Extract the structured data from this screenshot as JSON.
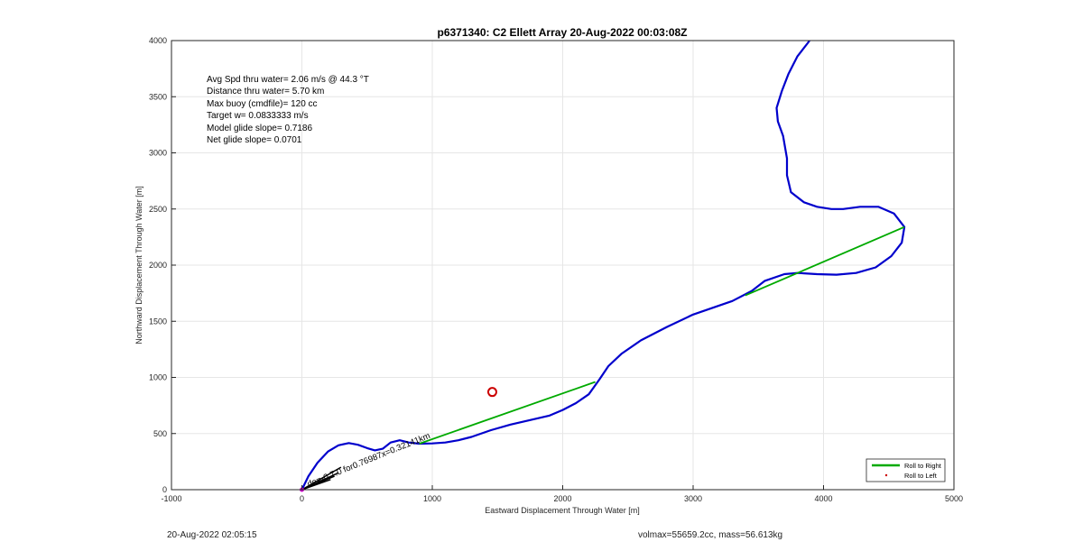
{
  "chart_data": {
    "type": "line",
    "title": "p6371340: C2 Ellett Array 20-Aug-2022 00:03:08Z",
    "xlabel": "Eastward Displacement Through Water [m]",
    "ylabel": "Northward Displacement Through Water [m]",
    "xlim": [
      -1000,
      5000
    ],
    "ylim": [
      0,
      4000
    ],
    "xticks": [
      -1000,
      0,
      1000,
      2000,
      3000,
      4000,
      5000
    ],
    "yticks": [
      0,
      500,
      1000,
      1500,
      2000,
      2500,
      3000,
      3500,
      4000
    ],
    "grid": true,
    "legend_position": "bottom-right",
    "legend": [
      {
        "label": "Roll to Right",
        "color": "#00aa00",
        "marker": "line"
      },
      {
        "label": "Roll to Left",
        "color": "#cc0000",
        "marker": "dot"
      }
    ],
    "stats_lines": [
      "Avg Spd thru water=  2.06 m/s @  44.3 °T",
      "Distance thru water=  5.70 km",
      "Max buoy (cmdfile)= 120 cc",
      "Target w= 0.0833333 m/s",
      "Model glide slope= 0.7186",
      "Net glide slope= 0.0701"
    ],
    "annotation_text": "de=-0.7.0 for0.76987x=0.32141km",
    "series": [
      {
        "color": "#0000cc",
        "points": [
          [
            0,
            0
          ],
          [
            50,
            120
          ],
          [
            120,
            240
          ],
          [
            200,
            340
          ],
          [
            280,
            395
          ],
          [
            360,
            415
          ],
          [
            430,
            400
          ],
          [
            500,
            370
          ],
          [
            560,
            350
          ],
          [
            620,
            365
          ],
          [
            680,
            420
          ],
          [
            750,
            440
          ],
          [
            820,
            420
          ],
          [
            900,
            410
          ],
          [
            1000,
            412
          ],
          [
            1100,
            420
          ],
          [
            1200,
            440
          ],
          [
            1300,
            470
          ],
          [
            1450,
            530
          ],
          [
            1600,
            580
          ],
          [
            1750,
            620
          ],
          [
            1900,
            660
          ],
          [
            2000,
            710
          ],
          [
            2100,
            770
          ],
          [
            2200,
            850
          ],
          [
            2280,
            980
          ],
          [
            2350,
            1100
          ],
          [
            2450,
            1210
          ],
          [
            2600,
            1330
          ],
          [
            2800,
            1450
          ],
          [
            3000,
            1560
          ],
          [
            3150,
            1620
          ],
          [
            3300,
            1680
          ],
          [
            3450,
            1770
          ],
          [
            3550,
            1860
          ],
          [
            3700,
            1920
          ],
          [
            3800,
            1930
          ],
          [
            3950,
            1920
          ],
          [
            4100,
            1915
          ],
          [
            4250,
            1930
          ],
          [
            4400,
            1980
          ],
          [
            4520,
            2080
          ],
          [
            4600,
            2200
          ],
          [
            4620,
            2340
          ],
          [
            4540,
            2460
          ],
          [
            4420,
            2520
          ],
          [
            4280,
            2520
          ],
          [
            4150,
            2500
          ],
          [
            4060,
            2500
          ],
          [
            3950,
            2520
          ],
          [
            3850,
            2560
          ],
          [
            3750,
            2650
          ],
          [
            3720,
            2800
          ],
          [
            3720,
            2950
          ],
          [
            3690,
            3150
          ],
          [
            3650,
            3280
          ],
          [
            3640,
            3400
          ],
          [
            3680,
            3550
          ],
          [
            3730,
            3700
          ],
          [
            3800,
            3860
          ],
          [
            3880,
            3980
          ],
          [
            3940,
            4080
          ]
        ]
      },
      {
        "color": "#00aa00",
        "points": [
          [
            900,
            410
          ],
          [
            2250,
            960
          ]
        ]
      },
      {
        "color": "#00aa00",
        "points": [
          [
            3400,
            1730
          ],
          [
            4620,
            2340
          ]
        ]
      }
    ],
    "markers": [
      {
        "x": 1460,
        "y": 870,
        "color": "#cc0000",
        "shape": "circle"
      }
    ],
    "vectors": [
      {
        "x": 0,
        "y": 0,
        "dx": 300,
        "dy": 200
      },
      {
        "x": 0,
        "y": 0,
        "dx": 280,
        "dy": 150
      },
      {
        "x": 0,
        "y": 0,
        "dx": 250,
        "dy": 120
      },
      {
        "x": 0,
        "y": 0,
        "dx": 220,
        "dy": 90
      }
    ]
  },
  "footer": {
    "left": "20-Aug-2022 02:05:15",
    "right": "volmax=55659.2cc, mass=56.613kg"
  }
}
